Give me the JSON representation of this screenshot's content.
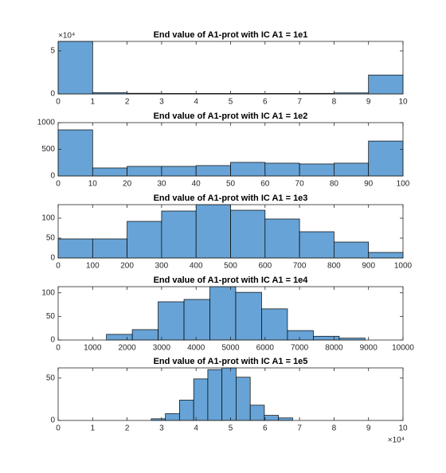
{
  "chart_data": [
    {
      "type": "histogram",
      "title": "End value of A1-prot with IC A1 = 1e1",
      "color": "#67a3d6",
      "bins": [
        0,
        1,
        2,
        3,
        4,
        5,
        6,
        7,
        8,
        9,
        10
      ],
      "values": [
        6.1,
        0.15,
        0.08,
        0.06,
        0.06,
        0.06,
        0.06,
        0.07,
        0.12,
        2.2
      ],
      "xlim": [
        0,
        10
      ],
      "xticks": [
        0,
        1,
        2,
        3,
        4,
        5,
        6,
        7,
        8,
        9,
        10
      ],
      "ylim": [
        0,
        6.1
      ],
      "yticks": [
        0,
        5
      ],
      "y_exponent": "×10⁴"
    },
    {
      "type": "histogram",
      "title": "End value of A1-prot with IC A1 = 1e2",
      "color": "#67a3d6",
      "bins": [
        0,
        10,
        20,
        30,
        40,
        50,
        60,
        70,
        80,
        90,
        100
      ],
      "values": [
        865,
        150,
        180,
        180,
        195,
        255,
        240,
        225,
        240,
        655
      ],
      "xlim": [
        0,
        100
      ],
      "xticks": [
        0,
        10,
        20,
        30,
        40,
        50,
        60,
        70,
        80,
        90,
        100
      ],
      "ylim": [
        0,
        1000
      ],
      "yticks": [
        0,
        500,
        1000
      ]
    },
    {
      "type": "histogram",
      "title": "End value of A1-prot with IC A1 = 1e3",
      "color": "#67a3d6",
      "bins": [
        0,
        100,
        200,
        300,
        400,
        500,
        600,
        700,
        800,
        900,
        1000
      ],
      "values": [
        48,
        48,
        92,
        118,
        134,
        120,
        98,
        66,
        40,
        14
      ],
      "xlim": [
        0,
        1000
      ],
      "xticks": [
        0,
        100,
        200,
        300,
        400,
        500,
        600,
        700,
        800,
        900,
        1000
      ],
      "ylim": [
        0,
        134
      ],
      "yticks": [
        0,
        50,
        100
      ]
    },
    {
      "type": "histogram",
      "title": "End value of A1-prot with IC A1 = 1e4",
      "color": "#67a3d6",
      "bins": [
        1400,
        2150,
        2900,
        3650,
        4400,
        5150,
        5900,
        6650,
        7400,
        8150,
        8900
      ],
      "values": [
        12,
        22,
        81,
        86,
        113,
        101,
        66,
        20,
        8,
        4
      ],
      "xlim": [
        0,
        10000
      ],
      "xticks": [
        0,
        1000,
        2000,
        3000,
        4000,
        5000,
        6000,
        7000,
        8000,
        9000,
        10000
      ],
      "ylim": [
        0,
        113
      ],
      "yticks": [
        0,
        50,
        100
      ]
    },
    {
      "type": "histogram",
      "title": "End value of A1-prot with IC A1 = 1e5",
      "color": "#67a3d6",
      "bins": [
        2.7,
        3.11,
        3.52,
        3.93,
        4.34,
        4.75,
        5.16,
        5.57,
        5.98,
        6.39,
        6.8
      ],
      "values": [
        2,
        8,
        24,
        49,
        60,
        62,
        51,
        18,
        6,
        3
      ],
      "xlim": [
        0,
        10
      ],
      "xticks": [
        0,
        1,
        2,
        3,
        4,
        5,
        6,
        7,
        8,
        9,
        10
      ],
      "ylim": [
        0,
        62
      ],
      "yticks": [
        0,
        50
      ],
      "x_exponent": "×10⁴"
    }
  ]
}
